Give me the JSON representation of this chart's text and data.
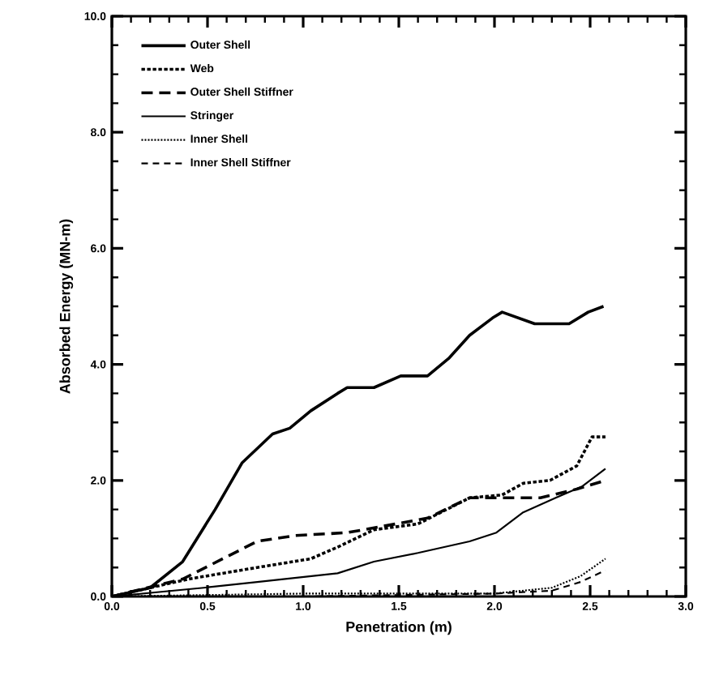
{
  "chart_data": {
    "type": "line",
    "xlabel": "Penetration (m)",
    "ylabel": "Absorbed Energy (MN-m)",
    "xlim": [
      0,
      3
    ],
    "ylim": [
      0,
      10
    ],
    "xticks": [
      {
        "value": 0,
        "label": "0.0"
      },
      {
        "value": 0.5,
        "label": "0.5"
      },
      {
        "value": 1,
        "label": "1.0"
      },
      {
        "value": 1.5,
        "label": "1.5"
      },
      {
        "value": 2,
        "label": "2.0"
      },
      {
        "value": 2.5,
        "label": "2.5"
      },
      {
        "value": 3,
        "label": "3.0"
      }
    ],
    "yticks": [
      {
        "value": 0,
        "label": "0.0"
      },
      {
        "value": 2,
        "label": "2.0"
      },
      {
        "value": 4,
        "label": "4.0"
      },
      {
        "value": 6,
        "label": "6.0"
      },
      {
        "value": 8,
        "label": "8.0"
      },
      {
        "value": 10,
        "label": "10.0"
      }
    ],
    "grid": false,
    "legend": "top left",
    "marker": "none",
    "series": [
      {
        "name": "Outer Shell",
        "color": "#000000",
        "line_style": "solid",
        "x": [
          0,
          0.2,
          0.37,
          0.54,
          0.68,
          0.84,
          0.93,
          1.04,
          1.18,
          1.23,
          1.37,
          1.51,
          1.65,
          1.76,
          1.87,
          1.99,
          2.04,
          2.21,
          2.29,
          2.39,
          2.49,
          2.57
        ],
        "values": [
          0.0,
          0.15,
          0.6,
          1.5,
          2.3,
          2.8,
          2.9,
          3.2,
          3.5,
          3.6,
          3.6,
          3.8,
          3.8,
          4.1,
          4.5,
          4.8,
          4.9,
          4.7,
          4.7,
          4.7,
          4.9,
          5.0
        ]
      },
      {
        "name": "Web",
        "color": "#000000",
        "line_style": "dotted",
        "x": [
          0,
          0.4,
          0.76,
          1.04,
          1.18,
          1.37,
          1.6,
          1.87,
          2.04,
          2.15,
          2.29,
          2.43,
          2.51,
          2.58
        ],
        "values": [
          0.0,
          0.3,
          0.5,
          0.65,
          0.85,
          1.15,
          1.25,
          1.7,
          1.75,
          1.95,
          2.0,
          2.25,
          2.75,
          2.75
        ]
      },
      {
        "name": "Outer Shell Stiffner",
        "color": "#000000",
        "line_style": "dashed",
        "x": [
          0,
          0.37,
          0.76,
          0.96,
          1.23,
          1.4,
          1.65,
          1.87,
          2.04,
          2.24,
          2.43,
          2.58
        ],
        "values": [
          0.0,
          0.3,
          0.95,
          1.05,
          1.1,
          1.2,
          1.35,
          1.7,
          1.7,
          1.7,
          1.85,
          2.0
        ]
      },
      {
        "name": "Stringer",
        "color": "#000000",
        "line_style": "solid",
        "x": [
          0,
          0.48,
          0.76,
          1.18,
          1.37,
          1.6,
          1.87,
          2.01,
          2.15,
          2.32,
          2.46,
          2.58
        ],
        "values": [
          0.0,
          0.15,
          0.25,
          0.4,
          0.6,
          0.75,
          0.95,
          1.1,
          1.45,
          1.7,
          1.9,
          2.2
        ]
      },
      {
        "name": "Inner Shell",
        "color": "#000000",
        "line_style": "dotted",
        "x": [
          0,
          1.0,
          2.0,
          2.3,
          2.45,
          2.58
        ],
        "values": [
          0.0,
          0.05,
          0.05,
          0.15,
          0.35,
          0.65
        ]
      },
      {
        "name": "Inner Shell Stiffner",
        "color": "#000000",
        "line_style": "dashed",
        "x": [
          0,
          1.0,
          2.0,
          2.3,
          2.45,
          2.58
        ],
        "values": [
          0.0,
          0.0,
          0.05,
          0.1,
          0.25,
          0.45
        ]
      }
    ]
  }
}
